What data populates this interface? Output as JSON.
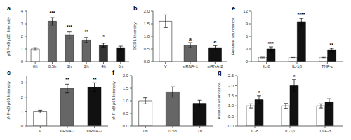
{
  "chart_data": [
    {
      "type": "bar",
      "title": "a",
      "categories": [
        "0h",
        "0.5h",
        "1h",
        "2h",
        "4h",
        "6h"
      ],
      "values": [
        1.0,
        3.2,
        2.1,
        1.7,
        1.3,
        1.1
      ],
      "errors": [
        0.1,
        0.3,
        0.25,
        0.2,
        0.15,
        0.12
      ],
      "colors": [
        "white",
        "#666666",
        "#666666",
        "#666666",
        "#333333",
        "#111111"
      ],
      "ylabel": "pNF-κB p65 Intensity",
      "ylim": [
        0,
        4
      ],
      "yticks": [
        0,
        1,
        2,
        3,
        4
      ],
      "annotations": [
        {
          "text": "***",
          "category": "0.5h",
          "y": 3.7
        },
        {
          "text": "***",
          "category": "1h",
          "y": 2.6
        },
        {
          "text": "**",
          "category": "2h",
          "y": 2.2
        },
        {
          "text": "*",
          "category": "4h",
          "y": 1.8
        }
      ]
    },
    {
      "type": "bar",
      "title": "b",
      "categories": [
        "V",
        "siRNA-1",
        "siRNA-2"
      ],
      "values": [
        1.6,
        0.65,
        0.55
      ],
      "errors": [
        0.25,
        0.1,
        0.08
      ],
      "colors": [
        "white",
        "#666666",
        "#111111"
      ],
      "ylabel": "SCD1 Intensity",
      "ylim": [
        0,
        2.0
      ],
      "yticks": [
        {
          "value": 0,
          "label": "0.0"
        },
        {
          "value": 0.5,
          "label": "0.5"
        },
        {
          "value": 1.0,
          "label": "1.0"
        },
        {
          "value": 1.5,
          "label": "1.5"
        },
        {
          "value": 2.0,
          "label": "2.0"
        }
      ],
      "annotations": [
        {
          "text": "a",
          "category": "siRNA-1",
          "y": 0.8
        },
        {
          "text": "a",
          "category": "siRNA-2",
          "y": 0.7
        }
      ]
    },
    {
      "type": "bar",
      "title": "e",
      "categories": [
        "IL-8",
        "IL-1β",
        "TNF-α"
      ],
      "series": [
        {
          "color": "white",
          "values": [
            1.0,
            1.0,
            1.0
          ],
          "errors": [
            0.15,
            0.1,
            0.12
          ]
        },
        {
          "color": "#111111",
          "values": [
            3.0,
            9.5,
            2.8
          ],
          "errors": [
            0.5,
            0.8,
            0.35
          ]
        }
      ],
      "ylabel": "Relative abundance",
      "ylim": [
        0,
        12
      ],
      "yticks": [
        0,
        3,
        6,
        9,
        12
      ],
      "annotations": [
        {
          "text": "***",
          "category": "IL-8",
          "y": 3.7
        },
        {
          "text": "****",
          "category": "IL-1β",
          "y": 10.8
        },
        {
          "text": "**",
          "category": "TNF-α",
          "y": 3.5
        }
      ]
    },
    {
      "type": "bar",
      "title": "c",
      "categories": [
        "V",
        "siRNA-1",
        "siRNA-2"
      ],
      "values": [
        1.0,
        2.6,
        2.7
      ],
      "errors": [
        0.1,
        0.3,
        0.3
      ],
      "colors": [
        "white",
        "#666666",
        "#111111"
      ],
      "ylabel": "pNF-κB p65 Intensity",
      "ylim": [
        0,
        3.5
      ],
      "yticks": [
        0,
        1,
        2,
        3
      ],
      "annotations": [
        {
          "text": "**",
          "category": "siRNA-1",
          "y": 3.1
        },
        {
          "text": "**",
          "category": "siRNA-2",
          "y": 3.1
        }
      ]
    },
    {
      "type": "bar",
      "title": "f",
      "categories": [
        "0h",
        "0.5h",
        "1h"
      ],
      "values": [
        1.0,
        1.35,
        0.9
      ],
      "errors": [
        0.12,
        0.2,
        0.12
      ],
      "colors": [
        "white",
        "#666666",
        "#111111"
      ],
      "ylabel": "pNF-κB p65 Intensity",
      "ylim": [
        0,
        2.0
      ],
      "yticks": [
        {
          "value": 0,
          "label": "0.0"
        },
        {
          "value": 0.5,
          "label": "0.5"
        },
        {
          "value": 1.0,
          "label": "1.0"
        },
        {
          "value": 1.5,
          "label": "1.5"
        },
        {
          "value": 2.0,
          "label": "2.0"
        }
      ]
    },
    {
      "type": "bar",
      "title": "g",
      "categories": [
        "IL-8",
        "IL-1β",
        "TNF-α"
      ],
      "series": [
        {
          "color": "white",
          "values": [
            1.0,
            1.0,
            1.0
          ],
          "errors": [
            0.1,
            0.12,
            0.1
          ]
        },
        {
          "color": "#111111",
          "values": [
            1.3,
            2.0,
            1.2
          ],
          "errors": [
            0.2,
            0.3,
            0.15
          ]
        }
      ],
      "ylabel": "Relative abundance",
      "ylim": [
        0,
        2.5
      ],
      "yticks": [
        {
          "value": 0,
          "label": "0.0"
        },
        {
          "value": 0.5,
          "label": "0.5"
        },
        {
          "value": 1.0,
          "label": "1.0"
        },
        {
          "value": 1.5,
          "label": "1.5"
        },
        {
          "value": 2.0,
          "label": "2.0"
        },
        {
          "value": 2.5,
          "label": "2.5"
        }
      ],
      "annotations": [
        {
          "text": "*",
          "category": "IL-8",
          "y": 1.55
        },
        {
          "text": "*",
          "category": "IL-1β",
          "y": 2.35
        }
      ]
    }
  ]
}
